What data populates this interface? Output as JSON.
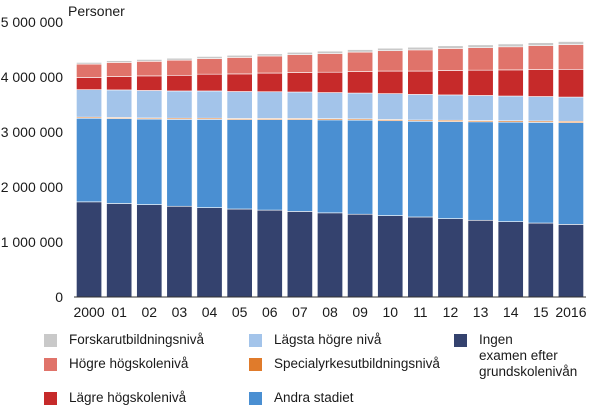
{
  "chart_data": {
    "type": "bar",
    "stacked": true,
    "title": "",
    "ylabel": "Personer",
    "xlabel": "",
    "ylim": [
      0,
      5000000
    ],
    "yticks": [
      0,
      1000000,
      2000000,
      3000000,
      4000000,
      5000000
    ],
    "ytick_labels": [
      "0",
      "1 000 000",
      "2 000 000",
      "3 000 000",
      "4 000 000",
      "5 000 000"
    ],
    "categories": [
      "2000",
      "01",
      "02",
      "03",
      "04",
      "05",
      "06",
      "07",
      "08",
      "09",
      "10",
      "11",
      "12",
      "13",
      "14",
      "15",
      "2016"
    ],
    "grid": false,
    "series": [
      {
        "name": "Ingen examen efter grundskolenivån",
        "color": "#34426e",
        "values": [
          1730000,
          1700000,
          1680000,
          1650000,
          1625000,
          1600000,
          1580000,
          1555000,
          1530000,
          1505000,
          1480000,
          1455000,
          1425000,
          1395000,
          1370000,
          1345000,
          1320000
        ]
      },
      {
        "name": "Andra stadiet",
        "color": "#4a8fd2",
        "values": [
          1520000,
          1545000,
          1555000,
          1580000,
          1605000,
          1625000,
          1645000,
          1670000,
          1690000,
          1710000,
          1725000,
          1740000,
          1765000,
          1790000,
          1810000,
          1830000,
          1850000
        ]
      },
      {
        "name": "Specialyrkesutbildningsnivå",
        "color": "#e07b2b",
        "values": [
          20000,
          20000,
          20000,
          21000,
          21000,
          21000,
          22000,
          22000,
          22000,
          23000,
          23000,
          23000,
          24000,
          24000,
          24000,
          25000,
          25000
        ]
      },
      {
        "name": "Lägsta högre nivå",
        "color": "#a3c4ea",
        "values": [
          500000,
          500000,
          500000,
          495000,
          495000,
          490000,
          485000,
          480000,
          475000,
          470000,
          470000,
          465000,
          460000,
          455000,
          450000,
          445000,
          440000
        ]
      },
      {
        "name": "Lägre högskolenivå",
        "color": "#c62a2a",
        "values": [
          220000,
          245000,
          265000,
          285000,
          305000,
          320000,
          340000,
          355000,
          370000,
          390000,
          410000,
          425000,
          445000,
          460000,
          475000,
          490000,
          505000
        ]
      },
      {
        "name": "Högre högskolenivå",
        "color": "#e0736a",
        "values": [
          245000,
          255000,
          265000,
          275000,
          285000,
          300000,
          310000,
          325000,
          340000,
          355000,
          370000,
          385000,
          400000,
          410000,
          420000,
          435000,
          450000
        ]
      },
      {
        "name": "Forskarutbildningsnivå",
        "color": "#c9c9c9",
        "values": [
          30000,
          32000,
          34000,
          36000,
          37000,
          39000,
          40000,
          42000,
          43000,
          45000,
          46000,
          48000,
          49000,
          51000,
          52000,
          54000,
          55000
        ]
      }
    ]
  },
  "legend": {
    "items": [
      {
        "label": "Forskarutbildningsnivå",
        "color": "#c9c9c9"
      },
      {
        "label": "Högre högskolenivå",
        "color": "#e0736a"
      },
      {
        "label": "Lägre högskolenivå",
        "color": "#c62a2a"
      },
      {
        "label": "Lägsta högre nivå",
        "color": "#a3c4ea"
      },
      {
        "label": "Specialyrkesutbildningsnivå",
        "color": "#e07b2b"
      },
      {
        "label": "Andra stadiet",
        "color": "#4a8fd2"
      },
      {
        "label": "Ingen\nexamen efter\ngrundskolenivån",
        "color": "#34426e"
      }
    ]
  }
}
